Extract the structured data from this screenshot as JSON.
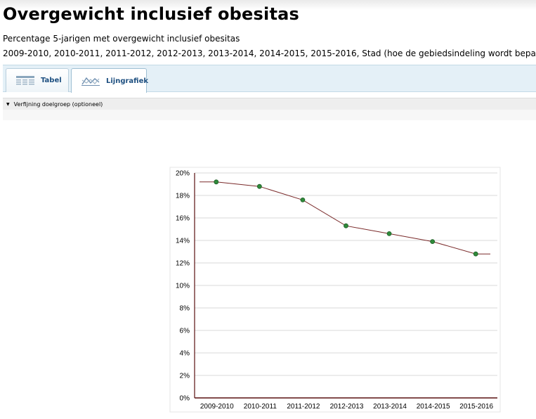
{
  "page": {
    "title": "Overgewicht inclusief obesitas",
    "subtitle": "Percentage 5-jarigen met overgewicht inclusief obesitas",
    "periods": "2009-2010, 2010-2011, 2011-2012, 2012-2013, 2013-2014, 2014-2015, 2015-2016, Stad (hoe de gebiedsindeling wordt bepaald, leest u"
  },
  "tabs": [
    {
      "label": "Tabel",
      "icon": "table-icon",
      "active": false
    },
    {
      "label": "Lijngrafiek",
      "icon": "line-chart-icon",
      "active": true
    }
  ],
  "filter": {
    "label": "Verfijning doelgroep (optioneel)",
    "icon": "caret-down-icon"
  },
  "colors": {
    "line": "#7a2a2a",
    "marker": "#2f8a3a",
    "grid": "#d9d9d9",
    "axis": "#5a1010",
    "tab_text": "#1d4f80"
  },
  "chart_data": {
    "type": "line",
    "title": "",
    "xlabel": "",
    "ylabel": "",
    "categories": [
      "2009-2010",
      "2010-2011",
      "2011-2012",
      "2012-2013",
      "2013-2014",
      "2014-2015",
      "2015-2016"
    ],
    "values": [
      19.2,
      18.8,
      17.6,
      15.3,
      14.6,
      13.9,
      12.8
    ],
    "ylim": [
      0,
      20
    ],
    "yticks": [
      0,
      2,
      4,
      6,
      8,
      10,
      12,
      14,
      16,
      18,
      20
    ],
    "ytick_labels": [
      "0%",
      "2%",
      "4%",
      "6%",
      "8%",
      "10%",
      "12%",
      "14%",
      "16%",
      "18%",
      "20%"
    ],
    "grid": true,
    "legend": "none"
  }
}
